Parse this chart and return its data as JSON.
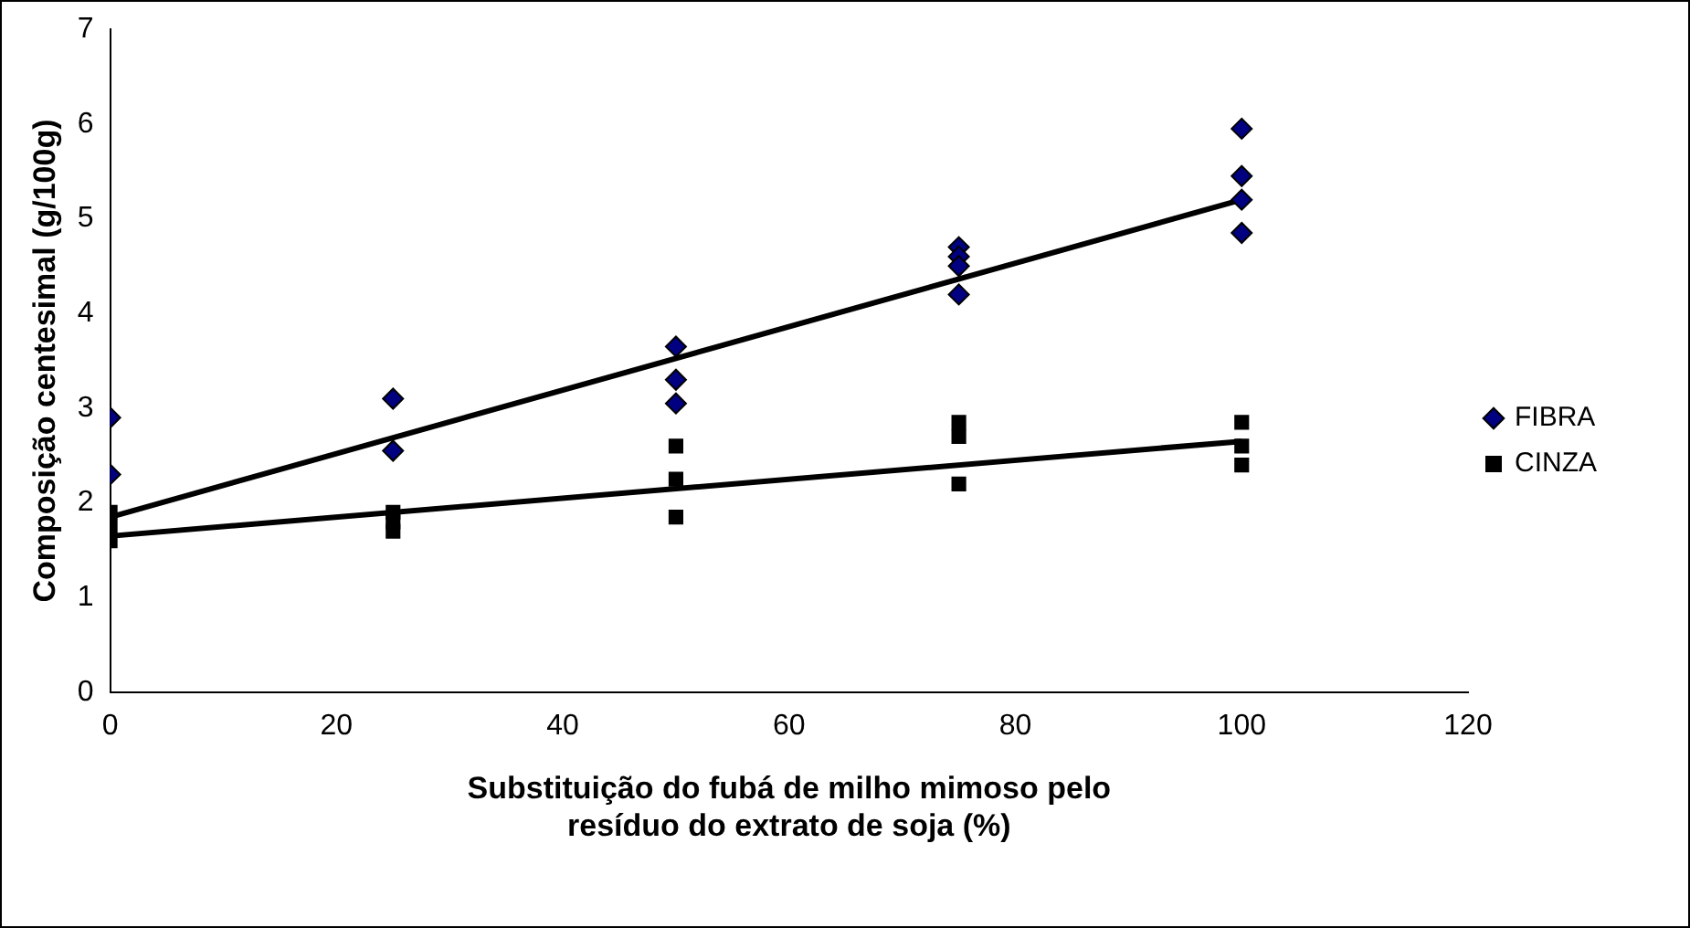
{
  "chart_data": {
    "type": "scatter",
    "xlabel": "Substituição do fubá de milho mimoso pelo\nresíduo do extrato de soja (%)",
    "ylabel": "Composição centesimal (g/100g)",
    "xlim": [
      0,
      120
    ],
    "xticks": [
      0,
      20,
      40,
      60,
      80,
      100,
      120
    ],
    "ylim": [
      0,
      7
    ],
    "yticks": [
      0,
      1,
      2,
      3,
      4,
      5,
      6,
      7
    ],
    "grid": false,
    "legend": "right",
    "series": [
      {
        "name": "FIBRA",
        "color": "#000080",
        "marker": "diamond",
        "x": [
          0,
          0,
          25,
          25,
          50,
          50,
          50,
          75,
          75,
          75,
          75,
          100,
          100,
          100,
          100
        ],
        "values": [
          2.9,
          2.3,
          3.1,
          2.55,
          3.65,
          3.3,
          3.05,
          4.7,
          4.6,
          4.5,
          4.2,
          5.95,
          5.45,
          5.2,
          4.85
        ]
      },
      {
        "name": "CINZA",
        "color": "#000000",
        "marker": "square",
        "x": [
          0,
          0,
          0,
          25,
          25,
          25,
          50,
          50,
          50,
          75,
          75,
          75,
          100,
          100,
          100
        ],
        "values": [
          1.9,
          1.75,
          1.6,
          1.9,
          1.8,
          1.7,
          2.6,
          2.25,
          1.85,
          2.85,
          2.7,
          2.2,
          2.85,
          2.6,
          2.4
        ]
      },
      {
        "color": "#000000",
        "type": "line",
        "marker": "none",
        "x": [
          0,
          100
        ],
        "values": [
          1.85,
          5.2
        ]
      },
      {
        "color": "#000000",
        "type": "line",
        "marker": "none",
        "x": [
          0,
          100
        ],
        "values": [
          1.65,
          2.65
        ]
      }
    ]
  }
}
